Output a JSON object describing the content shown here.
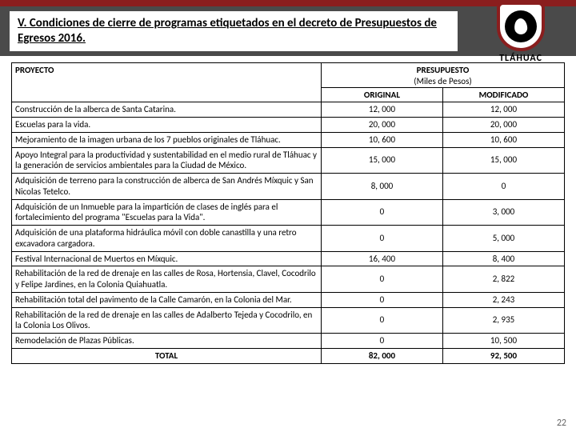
{
  "header": {
    "title": "V. Condiciones de cierre de programas etiquetados en el decreto de Presupuestos de Egresos 2016.",
    "brand": "TLÁHUAC"
  },
  "table": {
    "headers": {
      "proyecto": "PROYECTO",
      "presupuesto": "PRESUPUESTO",
      "presupuesto_sub": "(Miles de Pesos)",
      "original": "ORIGINAL",
      "modificado": "MODIFICADO"
    },
    "rows": [
      {
        "proyecto": "Construcción de la alberca de Santa Catarina.",
        "original": "12, 000",
        "modificado": "12, 000"
      },
      {
        "proyecto": "Escuelas para la vida.",
        "original": "20, 000",
        "modificado": "20, 000"
      },
      {
        "proyecto": "Mejoramiento de la imagen urbana de los 7 pueblos originales de Tláhuac.",
        "original": "10, 600",
        "modificado": "10, 600"
      },
      {
        "proyecto": "Apoyo Integral para la productividad y sustentabilidad en el medio rural de Tláhuac y la generación de servicios ambientales para la Ciudad de México.",
        "original": "15, 000",
        "modificado": "15, 000"
      },
      {
        "proyecto": "Adquisición de terreno para la construcción de alberca de San Andrés Míxquic y San Nicolas Tetelco.",
        "original": "8, 000",
        "modificado": "0"
      },
      {
        "proyecto": "Adquisición de un Inmueble para la impartición de clases de inglés para el fortalecimiento del programa \"Escuelas para la Vida\".",
        "original": "0",
        "modificado": "3, 000"
      },
      {
        "proyecto": "Adquisición de una plataforma hidráulica móvil con doble canastilla y una retro excavadora cargadora.",
        "original": "0",
        "modificado": "5, 000"
      },
      {
        "proyecto": "Festival Internacional de Muertos en Míxquic.",
        "original": "16, 400",
        "modificado": "8, 400"
      },
      {
        "proyecto": "Rehabilitación de la red de drenaje en las calles de Rosa, Hortensia, Clavel, Cocodrilo y Felipe Jardines, en la Colonia Quiahuatla.",
        "original": "0",
        "modificado": "2, 822"
      },
      {
        "proyecto": "Rehabilitación total del pavimento de la Calle Camarón, en la Colonia del Mar.",
        "original": "0",
        "modificado": "2, 243"
      },
      {
        "proyecto": "Rehabilitación de la red de drenaje en las calles de Adalberto Tejeda y Cocodrilo, en la Colonia Los Olivos.",
        "original": "0",
        "modificado": "2, 935"
      },
      {
        "proyecto": "Remodelación de Plazas Públicas.",
        "original": "0",
        "modificado": "10, 500"
      }
    ],
    "total": {
      "label": "TOTAL",
      "original": "82, 000",
      "modificado": "92, 500"
    }
  },
  "page_number": "22",
  "colors": {
    "brand_red": "#8a1e1e",
    "band_gray": "#4a4a4a",
    "border": "#000000",
    "text": "#000000",
    "pagenum": "#666666"
  }
}
